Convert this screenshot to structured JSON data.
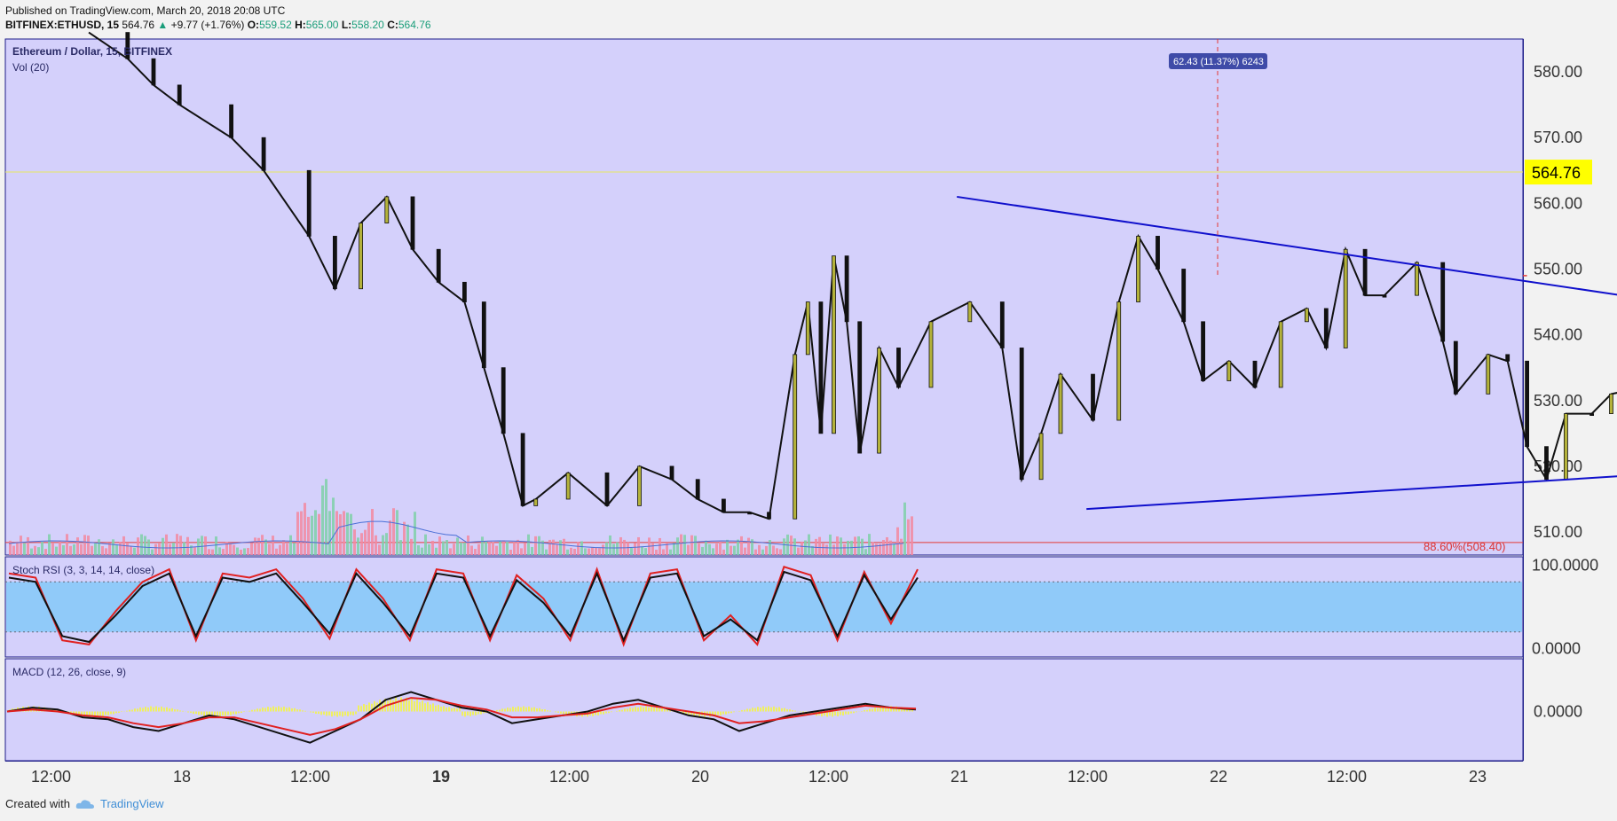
{
  "header": {
    "published": "Published on TradingView.com, March 20, 2018 20:08 UTC",
    "symbol": "BITFINEX:ETHUSD, 15",
    "last": "564.76",
    "change": "+9.77 (+1.76%)",
    "o_label": "O:",
    "o": "559.52",
    "h_label": "H:",
    "h": "565.00",
    "l_label": "L:",
    "l": "558.20",
    "c_label": "C:",
    "c": "564.76"
  },
  "legend": {
    "main": "Ethereum / Dollar, 15, BITFINEX",
    "vol": "Vol (20)",
    "stoch": "Stoch RSI (3, 3, 14, 14, close)",
    "macd": "MACD (12, 26, close, 9)"
  },
  "footer": {
    "created": "Created with",
    "brand": "TradingView"
  },
  "colors": {
    "panel_bg": "#d4d0fb",
    "target_zone": "#e6d3bd",
    "stoch_band": "#90caf9",
    "trendline": "#1010cc",
    "price_tag": "#ffff00",
    "red_line": "#e53935",
    "up_candle": "#b4b23a",
    "down_candle": "#111111",
    "vol_up": "#7fd0a8",
    "vol_down": "#f28aa0"
  },
  "chart_data": [
    {
      "type": "candlestick",
      "panel": "price",
      "title": "Ethereum / Dollar, 15, BITFINEX",
      "x_ticks": [
        "12:00",
        "18",
        "12:00",
        "19",
        "12:00",
        "20",
        "12:00",
        "21",
        "12:00",
        "22",
        "12:00",
        "23"
      ],
      "y_ticks": [
        "580.00",
        "570.00",
        "560.00",
        "550.00",
        "540.00",
        "530.00",
        "520.00",
        "510.00"
      ],
      "ylim": [
        506.5,
        585
      ],
      "last_price": "564.76",
      "fib_label": "88.60%(508.40)",
      "fib_level": 508.4,
      "target_label": "62.43 (11.37%) 6243",
      "breakout_level": 549,
      "close_path": [
        [
          0.5,
          586
        ],
        [
          0.8,
          582
        ],
        [
          1.0,
          578
        ],
        [
          1.2,
          575
        ],
        [
          1.6,
          570
        ],
        [
          1.85,
          565
        ],
        [
          2.2,
          555
        ],
        [
          2.4,
          547
        ],
        [
          2.6,
          557
        ],
        [
          2.8,
          561
        ],
        [
          3.0,
          553
        ],
        [
          3.2,
          548
        ],
        [
          3.4,
          545
        ],
        [
          3.55,
          535
        ],
        [
          3.7,
          525
        ],
        [
          3.85,
          514
        ],
        [
          3.95,
          515
        ],
        [
          4.2,
          519
        ],
        [
          4.5,
          514
        ],
        [
          4.75,
          520
        ],
        [
          5.0,
          518
        ],
        [
          5.2,
          515
        ],
        [
          5.4,
          513
        ],
        [
          5.6,
          513
        ],
        [
          5.75,
          512
        ],
        [
          5.95,
          537
        ],
        [
          6.05,
          545
        ],
        [
          6.15,
          525
        ],
        [
          6.25,
          552
        ],
        [
          6.35,
          542
        ],
        [
          6.45,
          522
        ],
        [
          6.6,
          538
        ],
        [
          6.75,
          532
        ],
        [
          7.0,
          542
        ],
        [
          7.3,
          545
        ],
        [
          7.55,
          538
        ],
        [
          7.7,
          518
        ],
        [
          7.85,
          525
        ],
        [
          8.0,
          534
        ],
        [
          8.25,
          527
        ],
        [
          8.45,
          545
        ],
        [
          8.6,
          555
        ],
        [
          8.75,
          550
        ],
        [
          8.95,
          542
        ],
        [
          9.1,
          533
        ],
        [
          9.3,
          536
        ],
        [
          9.5,
          532
        ],
        [
          9.7,
          542
        ],
        [
          9.9,
          544
        ],
        [
          10.05,
          538
        ],
        [
          10.2,
          553
        ],
        [
          10.35,
          546
        ],
        [
          10.5,
          546
        ],
        [
          10.75,
          551
        ],
        [
          10.95,
          539
        ],
        [
          11.05,
          531
        ],
        [
          11.3,
          537
        ],
        [
          11.45,
          536
        ],
        [
          11.6,
          523
        ],
        [
          11.75,
          518
        ],
        [
          11.9,
          528
        ],
        [
          12.1,
          528
        ],
        [
          12.25,
          531
        ],
        [
          12.5,
          532
        ],
        [
          12.7,
          536
        ],
        [
          12.85,
          535
        ],
        [
          13.05,
          537
        ],
        [
          13.15,
          540
        ],
        [
          13.3,
          549
        ],
        [
          13.5,
          556
        ],
        [
          13.6,
          554
        ],
        [
          13.75,
          553
        ],
        [
          13.85,
          555
        ],
        [
          13.95,
          562
        ],
        [
          14.0,
          564.76
        ]
      ],
      "annotations": [
        {
          "type": "trendline",
          "from": [
            7.2,
            561
          ],
          "to": [
            13.7,
            542
          ]
        },
        {
          "type": "trendline",
          "from": [
            8.2,
            513.5
          ],
          "to": [
            13.15,
            519.5
          ]
        },
        {
          "type": "horizontal",
          "y": 549,
          "x_start": 11.6
        },
        {
          "type": "ellipse",
          "center": [
            13.55,
            552.5
          ]
        },
        {
          "type": "target_box",
          "x_start": 11.6,
          "y_range": [
            549,
            585
          ]
        }
      ]
    },
    {
      "type": "bar",
      "panel": "volume",
      "title": "Vol (20)",
      "note": "volume histogram beneath price, colored up/down"
    },
    {
      "type": "line",
      "panel": "stoch_rsi",
      "title": "Stoch RSI (3, 3, 14, 14, close)",
      "y_ticks": [
        "100.0000",
        "0.0000"
      ],
      "ylim": [
        -10,
        110
      ],
      "band": [
        20,
        80
      ],
      "series": [
        {
          "values": [
            90,
            85,
            10,
            5,
            45,
            80,
            95,
            10,
            90,
            85,
            95,
            60,
            12,
            95,
            60,
            10,
            95,
            90,
            10,
            88,
            60,
            10,
            95,
            5,
            90,
            95,
            10,
            40,
            5,
            98,
            88,
            10,
            92,
            30,
            95
          ]
        },
        {
          "values": [
            85,
            80,
            15,
            8,
            40,
            75,
            90,
            15,
            85,
            80,
            90,
            55,
            18,
            90,
            55,
            15,
            90,
            85,
            15,
            82,
            55,
            15,
            90,
            10,
            85,
            90,
            15,
            35,
            10,
            92,
            82,
            15,
            88,
            35,
            85
          ]
        }
      ]
    },
    {
      "type": "line",
      "panel": "macd",
      "title": "MACD (12, 26, close, 9)",
      "y_ticks": [
        "0.0000"
      ],
      "series": [
        {
          "values": [
            0,
            2,
            1,
            -3,
            -4,
            -8,
            -10,
            -6,
            -2,
            -4,
            -8,
            -12,
            -16,
            -10,
            -4,
            6,
            10,
            6,
            2,
            0,
            -6,
            -4,
            -2,
            0,
            4,
            6,
            2,
            -2,
            -4,
            -10,
            -6,
            -2,
            0,
            2,
            4,
            2,
            1
          ]
        },
        {
          "values": [
            0,
            1,
            0,
            -2,
            -3,
            -6,
            -8,
            -6,
            -3,
            -3,
            -6,
            -9,
            -12,
            -9,
            -4,
            3,
            7,
            6,
            3,
            1,
            -3,
            -3,
            -2,
            -1,
            2,
            4,
            2,
            0,
            -2,
            -6,
            -5,
            -3,
            -1,
            1,
            3,
            2,
            1.5
          ]
        }
      ]
    }
  ]
}
